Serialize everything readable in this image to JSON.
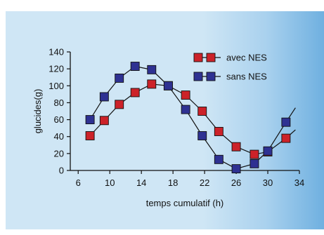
{
  "chart_data": {
    "type": "line",
    "title": "",
    "xlabel": "temps cumulatif (h)",
    "ylabel": "glucides(g)",
    "xlim": [
      5,
      34
    ],
    "ylim": [
      0,
      140
    ],
    "xticks": [
      6,
      10,
      14,
      18,
      22,
      26,
      30,
      34
    ],
    "yticks": [
      0,
      20,
      40,
      60,
      80,
      100,
      120,
      140
    ],
    "grid": false,
    "legend_position": "top-right",
    "series": [
      {
        "name": "avec NES",
        "color": "#cc2229",
        "markers": [
          {
            "x": 7.5,
            "y": 41
          },
          {
            "x": 9.3,
            "y": 59
          },
          {
            "x": 11.2,
            "y": 78
          },
          {
            "x": 13.2,
            "y": 92
          },
          {
            "x": 15.3,
            "y": 102
          },
          {
            "x": 17.4,
            "y": 100
          },
          {
            "x": 19.6,
            "y": 89
          },
          {
            "x": 21.7,
            "y": 70
          },
          {
            "x": 23.8,
            "y": 46
          },
          {
            "x": 26,
            "y": 28
          },
          {
            "x": 28.3,
            "y": 19
          },
          {
            "x": 30,
            "y": 22
          },
          {
            "x": 32.3,
            "y": 38
          }
        ],
        "line_end": {
          "x": 33.5,
          "y": 48
        }
      },
      {
        "name": "sans NES",
        "color": "#2e3192",
        "markers": [
          {
            "x": 7.5,
            "y": 60
          },
          {
            "x": 9.3,
            "y": 87
          },
          {
            "x": 11.2,
            "y": 109
          },
          {
            "x": 13.2,
            "y": 123
          },
          {
            "x": 15.3,
            "y": 119
          },
          {
            "x": 17.4,
            "y": 100
          },
          {
            "x": 19.6,
            "y": 72
          },
          {
            "x": 21.7,
            "y": 41
          },
          {
            "x": 23.8,
            "y": 13
          },
          {
            "x": 26,
            "y": 2
          },
          {
            "x": 28.3,
            "y": 8
          },
          {
            "x": 30,
            "y": 23
          },
          {
            "x": 32.3,
            "y": 57
          }
        ],
        "line_end": {
          "x": 33.5,
          "y": 74
        }
      }
    ]
  }
}
